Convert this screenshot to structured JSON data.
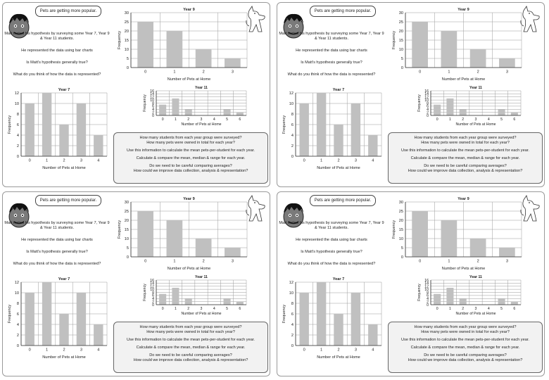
{
  "bubble_text": "Pets are getting more popular.",
  "intro_text": "Matt tested his hypothesis by surveying some Year 7, Year 9 & Year 11 students.",
  "represented_text": "He represented the data using bar charts",
  "hypothesis_question": "Is Matt's hypothesis generally true?",
  "represent_question": "What do you think of how the data is represented?",
  "questions": [
    "How many students from each year group were surveyed?",
    "How many pets were owned in total for each year?",
    "Use this information to calculate the mean pets-per-student for each year.",
    "Calculate & compare the mean, median & range for each year.",
    "Do we need to be careful comparing averages?",
    "How could we improve data collection, analysis & representation?"
  ],
  "chart_data": [
    {
      "type": "bar",
      "title": "Year 9",
      "xlabel": "Number of Pets at Home",
      "ylabel": "Frequency",
      "categories": [
        "0",
        "1",
        "2",
        "3"
      ],
      "values": [
        25,
        20,
        10,
        5
      ],
      "ylim": [
        0,
        30
      ],
      "yticks": [
        0,
        5,
        10,
        15,
        20,
        25,
        30
      ],
      "grid": true,
      "bar_color": "#c0c0c0"
    },
    {
      "type": "bar",
      "title": "Year 7",
      "xlabel": "Number of Pets at Home",
      "ylabel": "Frequency",
      "categories": [
        "0",
        "1",
        "2",
        "3",
        "4"
      ],
      "values": [
        10,
        12,
        6,
        10,
        4
      ],
      "ylim": [
        0,
        12
      ],
      "yticks": [
        0,
        2,
        4,
        6,
        8,
        10,
        12
      ],
      "grid": true,
      "bar_color": "#c0c0c0"
    },
    {
      "type": "bar",
      "title": "Year 11",
      "xlabel": "Number of Pets at Home",
      "ylabel": "Frequency",
      "categories": [
        "0",
        "1",
        "2",
        "3",
        "4",
        "5",
        "6"
      ],
      "values": [
        7,
        11,
        4,
        0,
        0,
        4,
        2
      ],
      "ylim": [
        0,
        16
      ],
      "yticks": [
        0,
        2,
        4,
        6,
        8,
        10,
        12,
        14,
        16
      ],
      "grid": true,
      "bar_color": "#c0c0c0"
    }
  ]
}
